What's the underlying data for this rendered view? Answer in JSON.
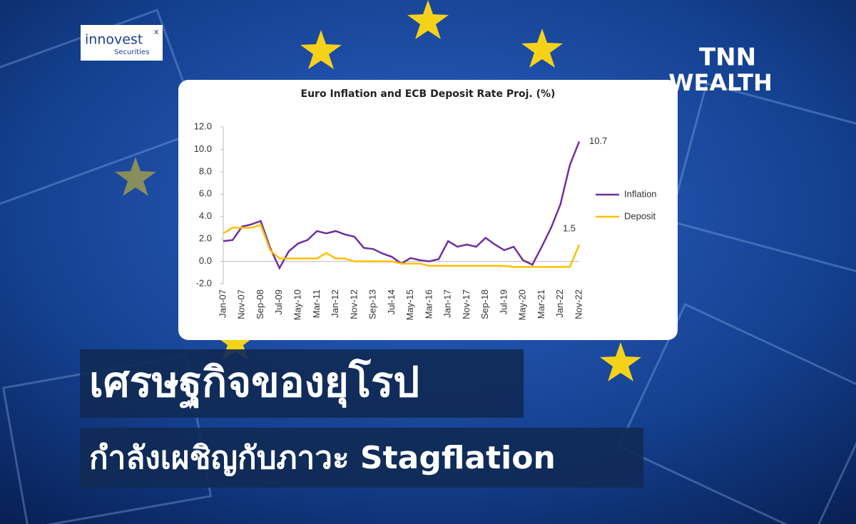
{
  "header": {
    "logo": "innovest",
    "logo_mark": "x",
    "logo_sub": "Securities",
    "brand_line1": "TNN",
    "brand_line2": "WEALTH",
    "headline": [
      "เศรษฐกิจของยุโรป",
      "กำลังเผชิญกับภาวะ Stagflation"
    ]
  },
  "chart_data": {
    "type": "line",
    "title": "Euro Inflation and ECB  Deposit Rate Proj. (%)",
    "categories": [
      "Jan-07",
      null,
      "Nov-07",
      null,
      "Sep-08",
      null,
      "Jul-09",
      null,
      "May-10",
      null,
      "Mar-11",
      null,
      "Jan-12",
      null,
      "Nov-12",
      null,
      "Sep-13",
      null,
      "Jul-14",
      null,
      "May-15",
      null,
      "Mar-16",
      null,
      "Jan-17",
      null,
      "Nov-17",
      null,
      "Sep-18",
      null,
      "Jul-19",
      null,
      "May-20",
      null,
      "Mar-21",
      null,
      "Jan-22",
      null,
      "Nov-22"
    ],
    "series": [
      {
        "name": "Inflation",
        "color": "#7030a0",
        "values": [
          1.8,
          1.9,
          3.1,
          3.3,
          3.6,
          1.2,
          -0.6,
          0.9,
          1.6,
          1.9,
          2.7,
          2.5,
          2.7,
          2.4,
          2.2,
          1.2,
          1.1,
          0.7,
          0.4,
          -0.2,
          0.3,
          0.1,
          0.0,
          0.2,
          1.8,
          1.3,
          1.5,
          1.3,
          2.1,
          1.5,
          1.0,
          1.3,
          0.1,
          -0.3,
          1.3,
          3.0,
          5.1,
          8.6,
          10.7
        ]
      },
      {
        "name": "Deposit",
        "color": "#ffc000",
        "values": [
          2.5,
          3.0,
          3.0,
          3.0,
          3.25,
          1.0,
          0.25,
          0.25,
          0.25,
          0.25,
          0.25,
          0.75,
          0.25,
          0.25,
          0,
          0,
          0,
          0,
          0,
          -0.2,
          -0.2,
          -0.2,
          -0.4,
          -0.4,
          -0.4,
          -0.4,
          -0.4,
          -0.4,
          -0.4,
          -0.4,
          -0.4,
          -0.5,
          -0.5,
          -0.5,
          -0.5,
          -0.5,
          -0.5,
          -0.5,
          1.5
        ]
      }
    ],
    "ylim": [
      -2,
      12
    ],
    "yticks": [
      {
        "value": -2,
        "label": "-2.0"
      },
      {
        "value": 0,
        "label": "0.0"
      },
      {
        "value": 2,
        "label": "2.0"
      },
      {
        "value": 4,
        "label": "4.0"
      },
      {
        "value": 6,
        "label": "6.0"
      },
      {
        "value": 8,
        "label": "8.0"
      },
      {
        "value": 10,
        "label": "10.0"
      },
      {
        "value": 12,
        "label": "12.0"
      }
    ],
    "grid": false,
    "legend": "right"
  }
}
